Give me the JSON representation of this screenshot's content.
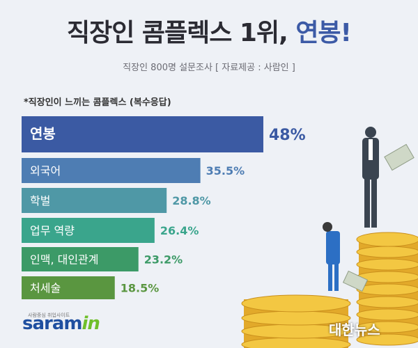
{
  "header": {
    "title_main": "직장인 콤플렉스 1위,",
    "title_accent": "연봉!",
    "subtitle": "직장인 800명 설문조사 [ 자료제공 : 사람인 ]",
    "note": "*직장인이 느끼는 콤플렉스 (복수응답)"
  },
  "chart_data": {
    "type": "bar",
    "orientation": "horizontal",
    "categories": [
      "연봉",
      "외국어",
      "학벌",
      "업무 역량",
      "인맥, 대인관계",
      "처세술"
    ],
    "values": [
      48,
      35.5,
      28.8,
      26.4,
      23.2,
      18.5
    ],
    "value_labels": [
      "48%",
      "35.5%",
      "28.8%",
      "26.4%",
      "23.2%",
      "18.5%"
    ],
    "unit": "%",
    "colors": [
      "#3b5aa3",
      "#4e7db3",
      "#4f98a6",
      "#3aa58c",
      "#3c9a67",
      "#5a9640"
    ],
    "label_colors": [
      "#3b5aa3",
      "#4e7db3",
      "#4f98a6",
      "#3aa58c",
      "#3c9a67",
      "#5a9640"
    ]
  },
  "footer": {
    "logo_main": "saram",
    "logo_in": "in",
    "logo_sub": "사람중심 취업사이트",
    "brand": "대한뉴스"
  }
}
